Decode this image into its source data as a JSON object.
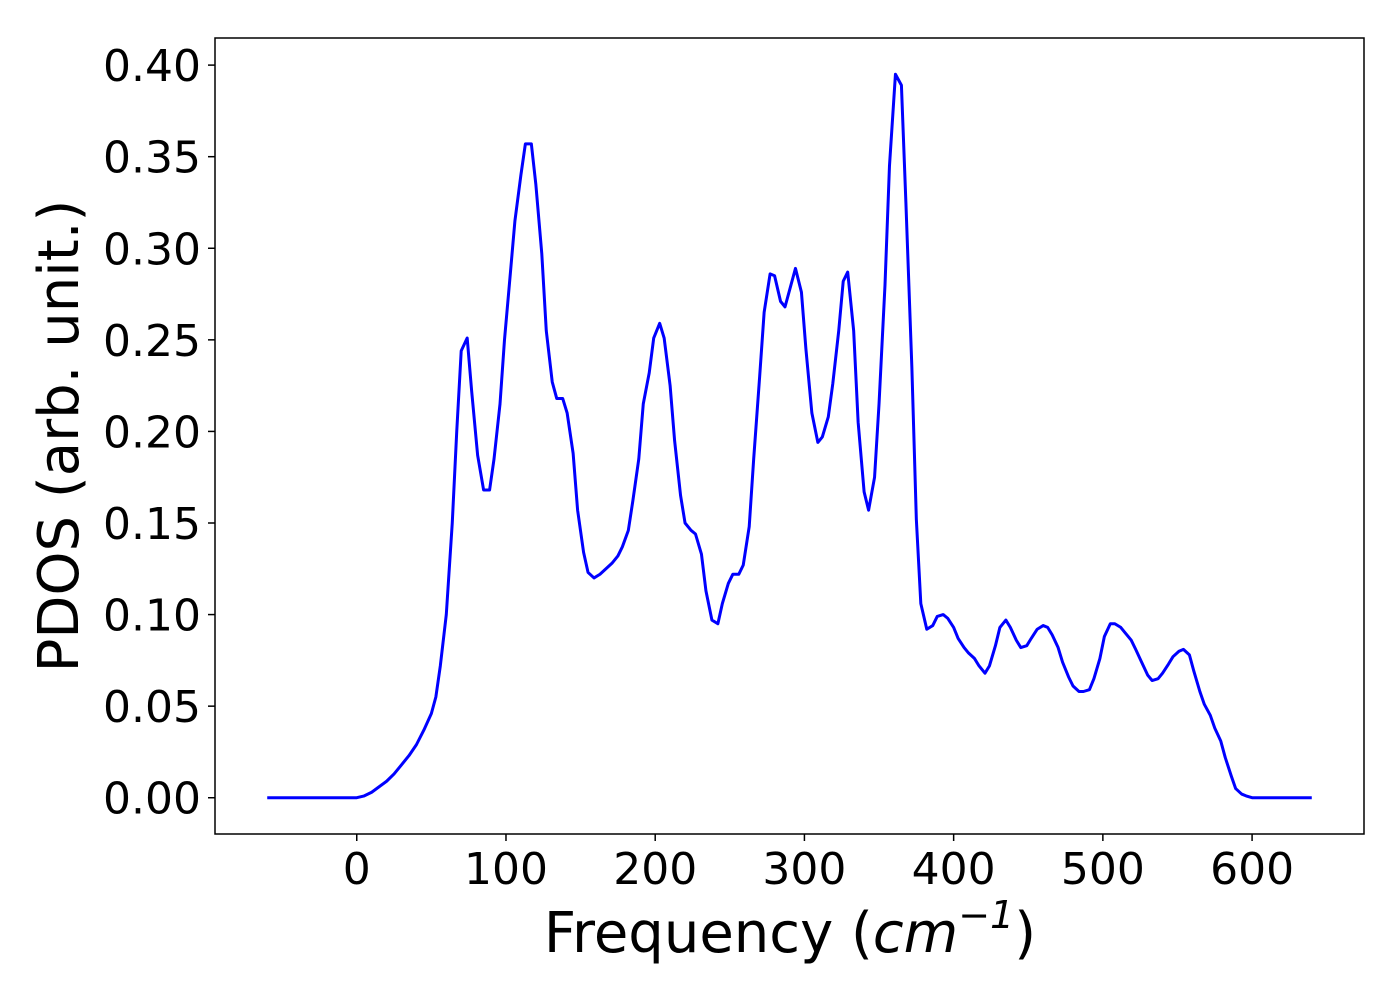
{
  "chart_data": {
    "type": "line",
    "xlabel": {
      "prefix": "Frequency (",
      "unit": "cm",
      "exponent": "−1",
      "suffix": ")"
    },
    "ylabel": "PDOS (arb. unit.)",
    "xlim": [
      -95,
      675
    ],
    "ylim": [
      -0.0198,
      0.4148
    ],
    "xticks": [
      0,
      100,
      200,
      300,
      400,
      500,
      600
    ],
    "yticks": [
      {
        "value": 0,
        "label": "0.00"
      },
      {
        "value": 0.05,
        "label": "0.05"
      },
      {
        "value": 0.1,
        "label": "0.10"
      },
      {
        "value": 0.15,
        "label": "0.15"
      },
      {
        "value": 0.2,
        "label": "0.20"
      },
      {
        "value": 0.25,
        "label": "0.25"
      },
      {
        "value": 0.3,
        "label": "0.30"
      },
      {
        "value": 0.35,
        "label": "0.35"
      },
      {
        "value": 0.4,
        "label": "0.40"
      }
    ],
    "grid": false,
    "series": [
      {
        "color": "#0000ff",
        "x": [
          -60,
          -40,
          -20,
          0,
          5,
          10,
          15,
          20,
          25,
          30,
          35,
          40,
          45,
          50,
          53,
          56,
          60,
          64,
          67,
          70,
          74,
          77,
          81,
          85,
          89,
          92,
          96,
          99,
          103,
          106,
          110,
          113,
          117,
          120,
          124,
          127,
          131,
          134,
          138,
          141,
          145,
          148,
          152,
          155,
          159,
          163,
          167,
          171,
          175,
          178,
          182,
          185,
          189,
          192,
          196,
          199,
          203,
          206,
          210,
          213,
          217,
          220,
          224,
          227,
          231,
          234,
          238,
          242,
          245,
          249,
          252,
          256,
          259,
          263,
          266,
          270,
          273,
          277,
          280,
          284,
          287,
          291,
          294,
          298,
          301,
          305,
          309,
          312,
          316,
          319,
          323,
          326,
          329,
          333,
          336,
          340,
          343,
          347,
          350,
          354,
          357,
          361,
          365,
          368,
          372,
          375,
          378,
          382,
          386,
          389,
          393,
          396,
          400,
          403,
          407,
          410,
          414,
          417,
          421,
          424,
          428,
          431,
          435,
          438,
          442,
          445,
          449,
          452,
          456,
          460,
          463,
          466,
          470,
          473,
          477,
          480,
          484,
          487,
          491,
          494,
          498,
          501,
          505,
          508,
          512,
          515,
          519,
          522,
          526,
          530,
          533,
          537,
          540,
          544,
          547,
          551,
          554,
          558,
          561,
          565,
          568,
          572,
          575,
          579,
          582,
          586,
          589,
          593,
          596,
          600,
          620,
          640
        ],
        "values": [
          0,
          0,
          0,
          0,
          0.001,
          0.003,
          0.006,
          0.009,
          0.013,
          0.018,
          0.023,
          0.029,
          0.037,
          0.046,
          0.055,
          0.072,
          0.1,
          0.15,
          0.2,
          0.244,
          0.251,
          0.222,
          0.187,
          0.168,
          0.168,
          0.185,
          0.215,
          0.25,
          0.287,
          0.315,
          0.34,
          0.357,
          0.357,
          0.335,
          0.297,
          0.255,
          0.227,
          0.218,
          0.218,
          0.21,
          0.188,
          0.157,
          0.134,
          0.123,
          0.12,
          0.122,
          0.125,
          0.128,
          0.132,
          0.137,
          0.146,
          0.162,
          0.185,
          0.215,
          0.232,
          0.251,
          0.259,
          0.251,
          0.225,
          0.195,
          0.165,
          0.15,
          0.146,
          0.144,
          0.133,
          0.113,
          0.097,
          0.095,
          0.106,
          0.117,
          0.122,
          0.122,
          0.127,
          0.148,
          0.185,
          0.23,
          0.265,
          0.286,
          0.285,
          0.271,
          0.268,
          0.28,
          0.289,
          0.276,
          0.245,
          0.21,
          0.194,
          0.197,
          0.208,
          0.226,
          0.255,
          0.282,
          0.287,
          0.255,
          0.205,
          0.167,
          0.157,
          0.175,
          0.215,
          0.28,
          0.345,
          0.395,
          0.389,
          0.325,
          0.235,
          0.152,
          0.106,
          0.092,
          0.094,
          0.099,
          0.1,
          0.098,
          0.093,
          0.087,
          0.082,
          0.079,
          0.076,
          0.072,
          0.068,
          0.072,
          0.083,
          0.093,
          0.097,
          0.093,
          0.086,
          0.082,
          0.083,
          0.087,
          0.092,
          0.094,
          0.093,
          0.089,
          0.082,
          0.074,
          0.066,
          0.061,
          0.058,
          0.058,
          0.059,
          0.065,
          0.076,
          0.088,
          0.095,
          0.095,
          0.093,
          0.09,
          0.086,
          0.081,
          0.074,
          0.067,
          0.064,
          0.065,
          0.068,
          0.073,
          0.077,
          0.08,
          0.081,
          0.078,
          0.069,
          0.058,
          0.051,
          0.045,
          0.038,
          0.031,
          0.022,
          0.012,
          0.005,
          0.002,
          0.001,
          0,
          0,
          0
        ]
      }
    ]
  }
}
